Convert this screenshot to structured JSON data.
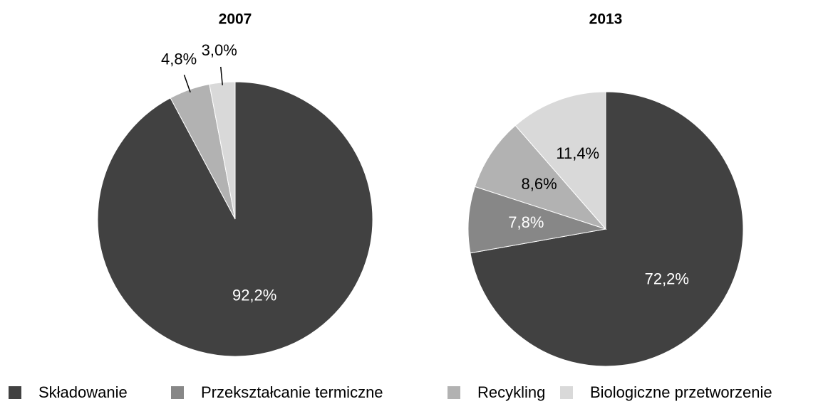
{
  "chart_data": [
    {
      "type": "pie",
      "title": "2007",
      "values": [
        92.2,
        null,
        4.8,
        3.0
      ],
      "value_labels": [
        "92,2%",
        null,
        "4,8%",
        "3,0%"
      ]
    },
    {
      "type": "pie",
      "title": "2013",
      "values": [
        72.2,
        7.8,
        8.6,
        11.4
      ],
      "value_labels": [
        "72,2%",
        "7,8%",
        "8,6%",
        "11,4%"
      ]
    }
  ],
  "legend": {
    "names": [
      "Składowanie",
      "Przekształcanie termiczne",
      "Recykling",
      "Biologiczne przetworzenie"
    ],
    "colors": [
      "#414141",
      "#878787",
      "#b2b2b2",
      "#d9d9d9"
    ]
  }
}
